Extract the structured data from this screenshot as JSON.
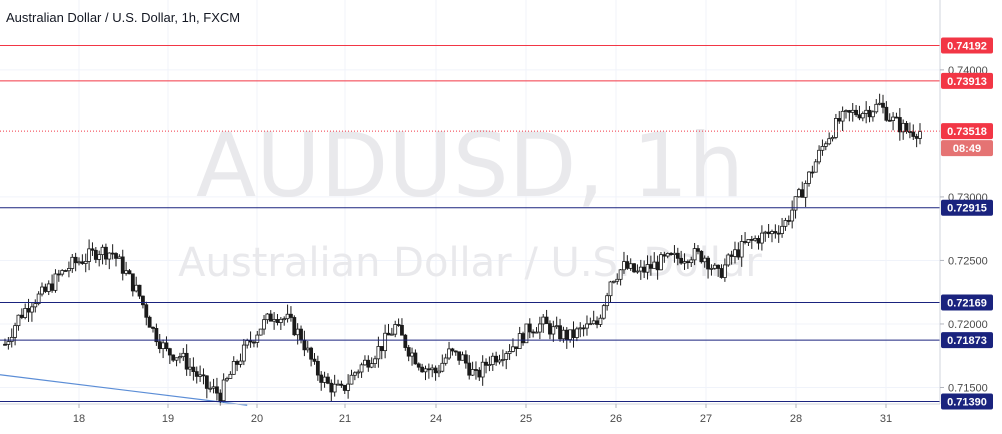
{
  "chart_data": {
    "type": "candlestick",
    "title": "Australian Dollar / U.S. Dollar, 1h, FXCM",
    "watermark_symbol": "AUDUSD, 1h",
    "watermark_name": "Australian Dollar / U.S. Dollar",
    "x_ticks": [
      "18",
      "19",
      "20",
      "21",
      "24",
      "25",
      "26",
      "27",
      "28",
      "31"
    ],
    "y_ticks": [
      "0.74000",
      "0.73000",
      "0.72500",
      "0.72000",
      "0.71500"
    ],
    "ylim": [
      0.7137,
      0.7455
    ],
    "levels": [
      {
        "value": 0.74192,
        "label": "0.74192",
        "color": "#f23645"
      },
      {
        "value": 0.73913,
        "label": "0.73913",
        "color": "#f23645"
      },
      {
        "value": 0.72915,
        "label": "0.72915",
        "color": "#1a237e"
      },
      {
        "value": 0.72169,
        "label": "0.72169",
        "color": "#1a237e"
      },
      {
        "value": 0.71873,
        "label": "0.71873",
        "color": "#1a237e"
      },
      {
        "value": 0.7139,
        "label": "0.71390",
        "color": "#1a237e"
      }
    ],
    "current_price": {
      "value": 0.73518,
      "label": "0.73518",
      "countdown": "08:49",
      "color": "#f23645"
    },
    "close_path": [
      [
        0,
        0.7184
      ],
      [
        1,
        0.7205
      ],
      [
        2,
        0.7218
      ],
      [
        3,
        0.7225
      ],
      [
        4,
        0.7238
      ],
      [
        5,
        0.7247
      ],
      [
        6,
        0.7252
      ],
      [
        7,
        0.7258
      ],
      [
        8,
        0.7256
      ],
      [
        9,
        0.724
      ],
      [
        10,
        0.7222
      ],
      [
        11,
        0.7195
      ],
      [
        12,
        0.7178
      ],
      [
        13,
        0.7175
      ],
      [
        14,
        0.7163
      ],
      [
        15,
        0.715
      ],
      [
        16,
        0.7145
      ],
      [
        17,
        0.7165
      ],
      [
        18,
        0.7183
      ],
      [
        19,
        0.7198
      ],
      [
        20,
        0.7208
      ],
      [
        21,
        0.7203
      ],
      [
        22,
        0.719
      ],
      [
        23,
        0.7165
      ],
      [
        24,
        0.7152
      ],
      [
        25,
        0.7147
      ],
      [
        26,
        0.7162
      ],
      [
        27,
        0.7172
      ],
      [
        28,
        0.7183
      ],
      [
        29,
        0.7198
      ],
      [
        30,
        0.718
      ],
      [
        31,
        0.7167
      ],
      [
        32,
        0.7162
      ],
      [
        33,
        0.7177
      ],
      [
        34,
        0.7173
      ],
      [
        35,
        0.7158
      ],
      [
        36,
        0.7172
      ],
      [
        37,
        0.7178
      ],
      [
        38,
        0.7185
      ],
      [
        39,
        0.7197
      ],
      [
        40,
        0.72
      ],
      [
        41,
        0.7193
      ],
      [
        42,
        0.719
      ],
      [
        43,
        0.7196
      ],
      [
        44,
        0.72
      ],
      [
        45,
        0.7235
      ],
      [
        46,
        0.7245
      ],
      [
        47,
        0.724
      ],
      [
        48,
        0.7245
      ],
      [
        49,
        0.725
      ],
      [
        50,
        0.7252
      ],
      [
        51,
        0.7255
      ],
      [
        52,
        0.7253
      ],
      [
        53,
        0.7238
      ],
      [
        54,
        0.7253
      ],
      [
        55,
        0.7262
      ],
      [
        56,
        0.7268
      ],
      [
        57,
        0.7272
      ],
      [
        58,
        0.728
      ],
      [
        59,
        0.73
      ],
      [
        60,
        0.7322
      ],
      [
        61,
        0.7345
      ],
      [
        62,
        0.736
      ],
      [
        63,
        0.7366
      ],
      [
        64,
        0.7368
      ],
      [
        65,
        0.7372
      ],
      [
        66,
        0.736
      ],
      [
        67,
        0.7352
      ],
      [
        68,
        0.73518
      ]
    ],
    "trendline": [
      [
        0,
        0.716
      ],
      [
        18,
        0.7136
      ]
    ],
    "watermark_color": "#e9e9ec",
    "up_color": "#1b1b1b",
    "down_color": "#1b1b1b"
  }
}
